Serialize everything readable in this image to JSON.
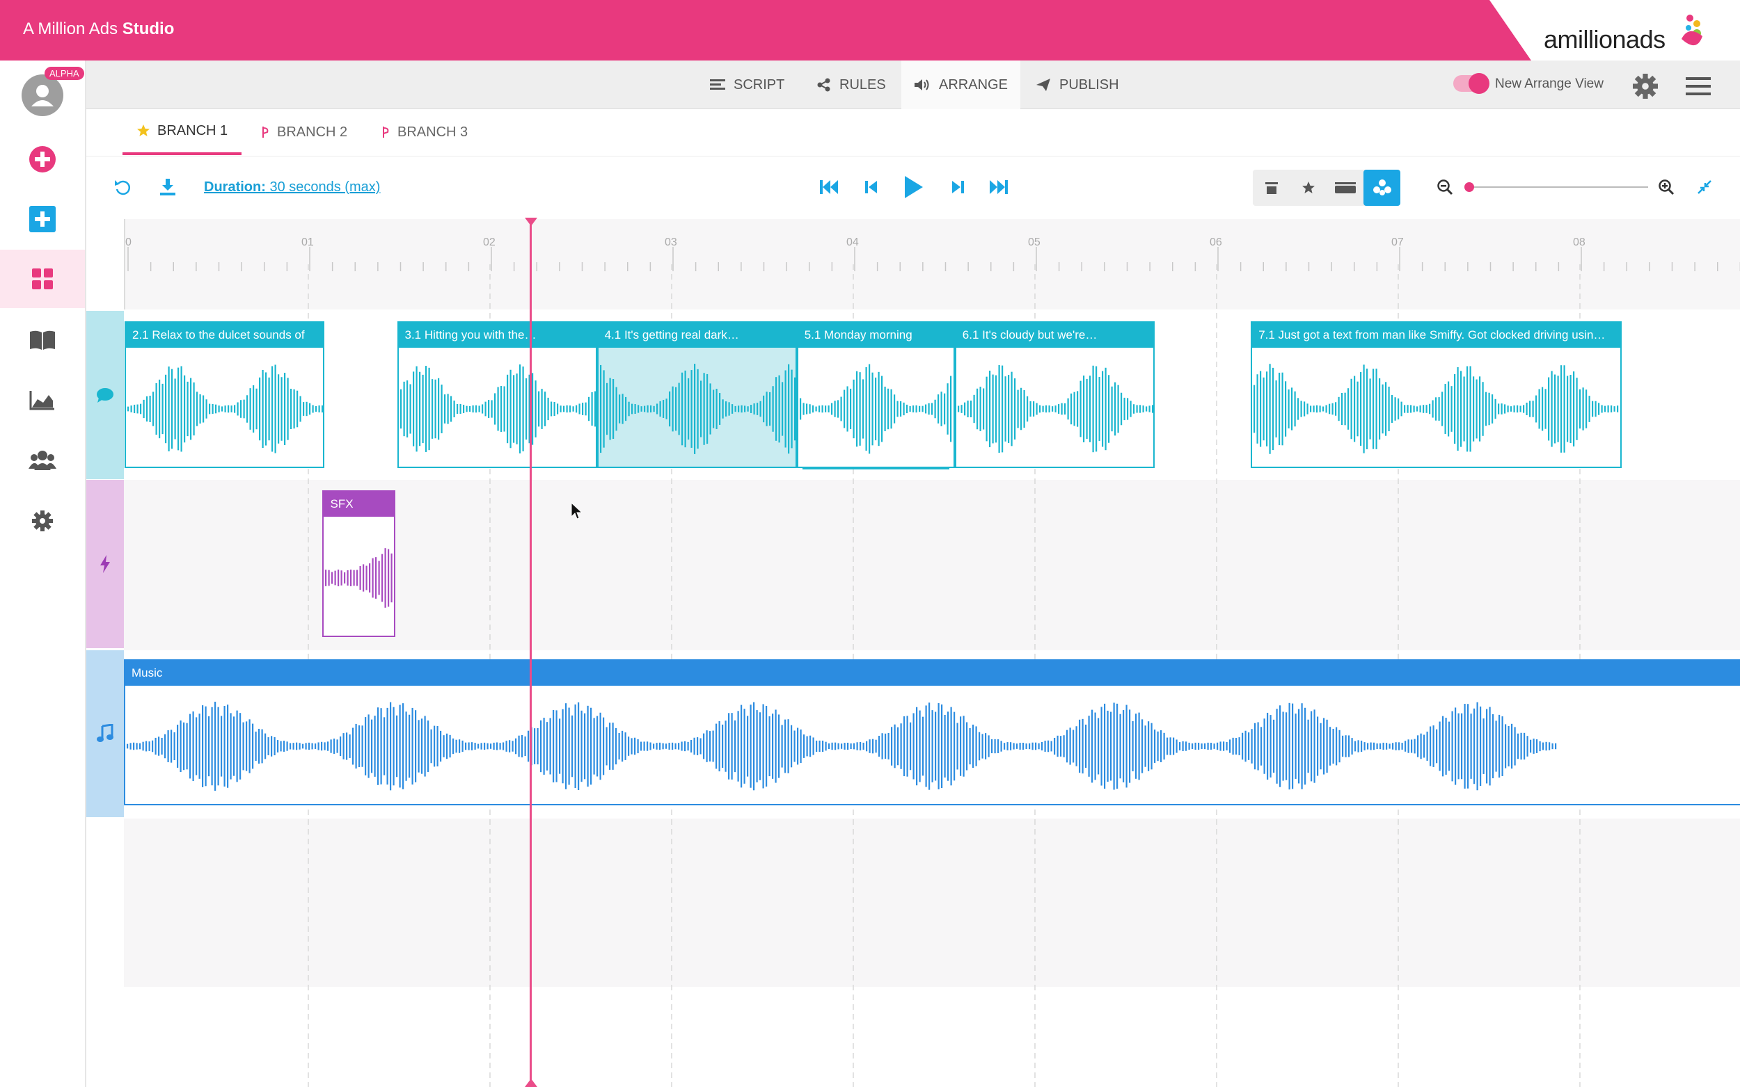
{
  "app": {
    "title_prefix": "A Million Ads ",
    "title_bold": "Studio"
  },
  "logo": {
    "part1": "amillion",
    "part2": "ads"
  },
  "user": {
    "badge": "ALPHA"
  },
  "sidebar": {
    "items": [
      {
        "name": "add-circle-icon",
        "color": "#e8397e"
      },
      {
        "name": "add-square-icon",
        "color": "#1aa6e4"
      },
      {
        "name": "dashboard-icon",
        "color": "#e8397e",
        "active": true
      },
      {
        "name": "book-icon",
        "color": "#555555"
      },
      {
        "name": "chart-icon",
        "color": "#555555"
      },
      {
        "name": "users-icon",
        "color": "#555555"
      },
      {
        "name": "settings-icon",
        "color": "#555555"
      }
    ]
  },
  "nav": {
    "items": [
      {
        "label": "SCRIPT",
        "icon": "script-icon"
      },
      {
        "label": "RULES",
        "icon": "share-icon"
      },
      {
        "label": "ARRANGE",
        "icon": "speaker-icon",
        "active": true
      },
      {
        "label": "PUBLISH",
        "icon": "send-icon"
      }
    ],
    "toggle_label": "New Arrange View",
    "toggle_on": true
  },
  "branches": [
    {
      "label": "BRANCH 1",
      "icon": "star-icon",
      "active": true
    },
    {
      "label": "BRANCH 2",
      "icon": "branch-icon"
    },
    {
      "label": "BRANCH 3",
      "icon": "branch-icon"
    }
  ],
  "toolbar": {
    "duration_label": "Duration:",
    "duration_value": "30 seconds (max)",
    "zoom_level": 0
  },
  "timeline": {
    "ruler_labels": [
      "0",
      "01",
      "02",
      "03",
      "04",
      "05",
      "06",
      "07",
      "08"
    ],
    "playhead_seconds": 2.25,
    "voice_clips": [
      {
        "label": "2.1 Relax to the dulcet sounds of",
        "start": 0.0,
        "end": 1.1
      },
      {
        "label": "3.1 Hitting you with the…",
        "start": 1.5,
        "end": 2.6
      },
      {
        "label": "4.1 It's getting real dark…",
        "start": 2.6,
        "end": 3.7,
        "selected": true
      },
      {
        "label": "5.1 Monday morning",
        "start": 3.7,
        "end": 4.57,
        "stacked": true
      },
      {
        "label": "6.1 It's cloudy but we're…",
        "start": 4.57,
        "end": 5.67
      },
      {
        "label": "7.1 Just got a text from man like Smiffy. Got clocked driving usin…",
        "start": 6.2,
        "end": 8.24
      }
    ],
    "sfx_clips": [
      {
        "label": "SFX",
        "start": 1.09,
        "end": 1.49
      }
    ],
    "music_clip": {
      "label": "Music"
    },
    "colors": {
      "voice": "#1ab6cf",
      "sfx": "#a74bc0",
      "music": "#2c8ce0",
      "accent": "#e8397e"
    }
  }
}
